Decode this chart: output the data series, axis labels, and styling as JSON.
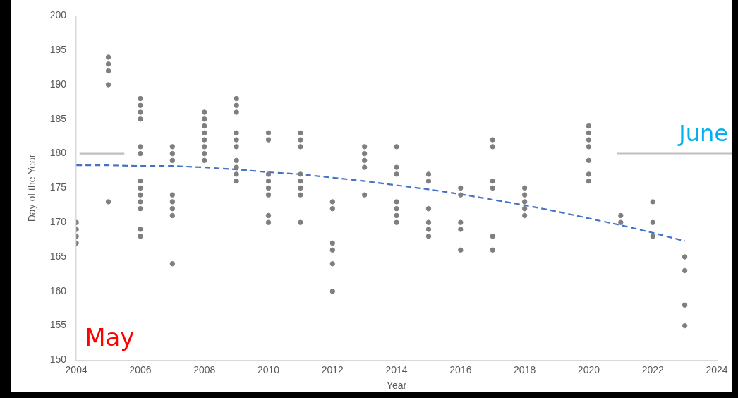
{
  "chart_data": {
    "type": "scatter",
    "xlabel": "Year",
    "ylabel": "Day of the Year",
    "xlim": [
      2004,
      2024
    ],
    "xticks": [
      2004,
      2006,
      2008,
      2010,
      2012,
      2014,
      2016,
      2018,
      2020,
      2022,
      2024
    ],
    "ylim": [
      150,
      200
    ],
    "yticks": [
      150,
      155,
      160,
      165,
      170,
      175,
      180,
      185,
      190,
      195,
      200
    ],
    "grid": false,
    "legend": false,
    "marker": "circle",
    "series": [
      {
        "color": "#7f7f7f",
        "x": [
          2004,
          2004,
          2004,
          2004,
          2005,
          2005,
          2005,
          2005,
          2005,
          2006,
          2006,
          2006,
          2006,
          2006,
          2006,
          2006,
          2006,
          2006,
          2006,
          2006,
          2006,
          2006,
          2007,
          2007,
          2007,
          2007,
          2007,
          2007,
          2007,
          2007,
          2008,
          2008,
          2008,
          2008,
          2008,
          2008,
          2008,
          2008,
          2009,
          2009,
          2009,
          2009,
          2009,
          2009,
          2009,
          2009,
          2009,
          2009,
          2010,
          2010,
          2010,
          2010,
          2010,
          2010,
          2010,
          2010,
          2011,
          2011,
          2011,
          2011,
          2011,
          2011,
          2011,
          2011,
          2012,
          2012,
          2012,
          2012,
          2012,
          2012,
          2013,
          2013,
          2013,
          2013,
          2013,
          2014,
          2014,
          2014,
          2014,
          2014,
          2014,
          2014,
          2015,
          2015,
          2015,
          2015,
          2015,
          2015,
          2016,
          2016,
          2016,
          2016,
          2016,
          2017,
          2017,
          2017,
          2017,
          2017,
          2017,
          2018,
          2018,
          2018,
          2018,
          2018,
          2020,
          2020,
          2020,
          2020,
          2020,
          2020,
          2020,
          2021,
          2021,
          2022,
          2022,
          2022,
          2023,
          2023,
          2023,
          2023
        ],
        "values": [
          170,
          169,
          168,
          167,
          194,
          193,
          192,
          190,
          173,
          188,
          187,
          186,
          185,
          181,
          180,
          176,
          175,
          174,
          173,
          172,
          169,
          168,
          181,
          180,
          179,
          174,
          173,
          172,
          171,
          164,
          186,
          185,
          184,
          183,
          182,
          181,
          180,
          179,
          188,
          187,
          186,
          183,
          182,
          181,
          179,
          178,
          177,
          176,
          183,
          182,
          177,
          176,
          175,
          174,
          171,
          170,
          183,
          182,
          181,
          177,
          176,
          175,
          174,
          170,
          173,
          172,
          167,
          166,
          164,
          160,
          181,
          180,
          179,
          178,
          174,
          181,
          178,
          177,
          173,
          172,
          171,
          170,
          177,
          176,
          172,
          170,
          169,
          168,
          175,
          174,
          170,
          169,
          166,
          182,
          181,
          176,
          175,
          168,
          166,
          175,
          174,
          173,
          172,
          171,
          184,
          183,
          182,
          181,
          179,
          177,
          176,
          171,
          170,
          173,
          170,
          168,
          165,
          163,
          158,
          155
        ]
      },
      {
        "type": "line",
        "color": "#4472c4",
        "marker": "none",
        "line_style": "dashed",
        "x": [
          2004,
          2005,
          2006,
          2007,
          2008,
          2009,
          2010,
          2011,
          2012,
          2013,
          2014,
          2015,
          2016,
          2017,
          2018,
          2019,
          2020,
          2021,
          2022,
          2023
        ],
        "values": [
          178.3,
          178.3,
          178.2,
          178.2,
          178,
          177.7,
          177.3,
          177,
          176.5,
          176,
          175.4,
          174.8,
          174.1,
          173.3,
          172.5,
          171.6,
          170.6,
          169.6,
          168.5,
          167.3
        ]
      },
      {
        "type": "line",
        "color": "#bfbfbf",
        "marker": "none",
        "line_style": "solid",
        "x": [
          2004.1,
          2005.5
        ],
        "values": [
          180,
          180
        ]
      }
    ],
    "ref_lines": [
      {
        "axis": "y",
        "value": 180,
        "label": "June",
        "color": "#bfbfbf"
      }
    ],
    "annotations": [
      "May"
    ]
  }
}
